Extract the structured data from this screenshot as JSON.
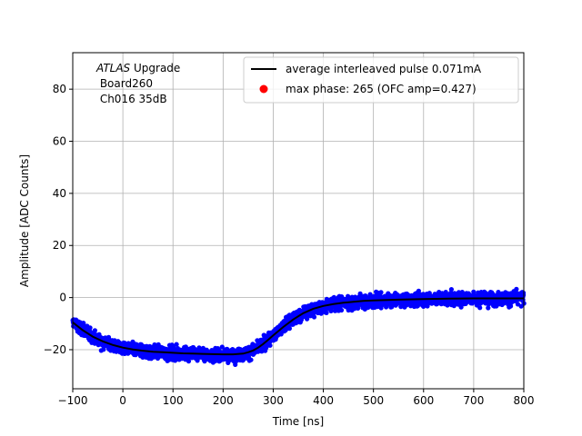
{
  "chart_data": {
    "type": "scatter",
    "title": "",
    "xlabel": "Time [ns]",
    "ylabel": "Amplitude [ADC Counts]",
    "xlim": [
      -100,
      800
    ],
    "ylim": [
      -35,
      94
    ],
    "xticks": [
      -100,
      0,
      100,
      200,
      300,
      400,
      500,
      600,
      700,
      800
    ],
    "yticks": [
      -20,
      0,
      20,
      40,
      60,
      80
    ],
    "grid": true,
    "legend_position": "top-right",
    "annotation": {
      "experiment_italic": "ATLAS",
      "experiment_rest": " Upgrade",
      "line2": " Board260",
      "line3": " Ch016 35dB"
    },
    "series": [
      {
        "name": "samples",
        "kind": "scatter",
        "color": "#0000ff",
        "noise_spread_adc": 3.2
      },
      {
        "name": "average interleaved pulse 0.071mA",
        "kind": "line",
        "color": "#000000",
        "x": [
          -100,
          -80,
          -60,
          -40,
          -20,
          0,
          20,
          40,
          60,
          80,
          100,
          120,
          140,
          160,
          180,
          200,
          220,
          240,
          250,
          260,
          270,
          280,
          290,
          300,
          320,
          340,
          360,
          380,
          400,
          420,
          440,
          460,
          480,
          500,
          550,
          600,
          650,
          700,
          750,
          800
        ],
        "y": [
          -9.5,
          -12.5,
          -15,
          -16.8,
          -18.2,
          -19.2,
          -19.9,
          -20.4,
          -20.8,
          -21,
          -21.2,
          -21.4,
          -21.5,
          -21.6,
          -21.7,
          -21.8,
          -21.8,
          -21.5,
          -21.0,
          -20.3,
          -19.2,
          -17.8,
          -16.2,
          -14.5,
          -11.3,
          -8.4,
          -6.0,
          -4.3,
          -3.2,
          -2.5,
          -2.0,
          -1.6,
          -1.3,
          -1.1,
          -0.8,
          -0.6,
          -0.4,
          -0.3,
          -0.3,
          -0.3
        ]
      },
      {
        "name": "max phase: 265 (OFC amp=0.427)",
        "kind": "marker",
        "color": "#ff0000"
      }
    ]
  }
}
